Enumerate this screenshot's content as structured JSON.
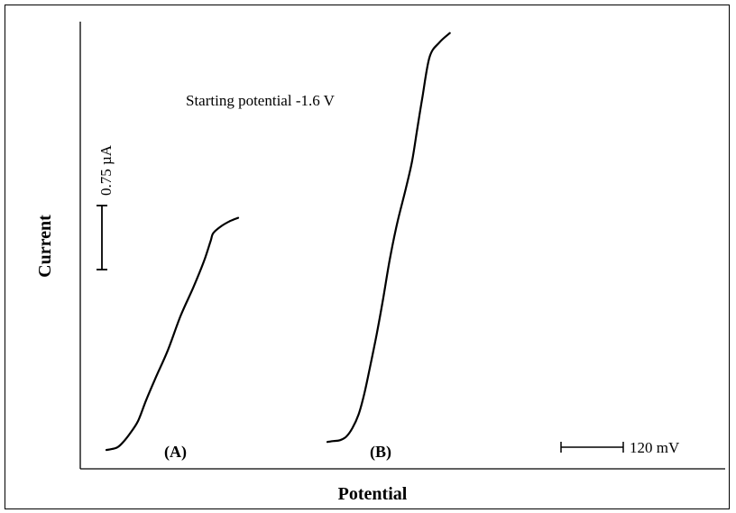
{
  "chart_data": {
    "type": "line",
    "xlabel": "Potential",
    "ylabel": "Current",
    "annotation": "Starting potential -1.6 V",
    "current_scale_bar": {
      "label": "0.75 µA",
      "value": 0.75,
      "unit": "µA"
    },
    "potential_scale_bar": {
      "label": "120 mV",
      "value": 120,
      "unit": "mV"
    },
    "grid": false,
    "legend": "none",
    "series": [
      {
        "name": "(A)",
        "color": "#000000",
        "x_mV": [
          0,
          10,
          21,
          32,
          45,
          61,
          77,
          96,
          118,
          143,
          168,
          188,
          201,
          206,
          221,
          238,
          254
        ],
        "y_uA": [
          0.01,
          0.02,
          0.04,
          0.1,
          0.2,
          0.35,
          0.6,
          0.87,
          1.17,
          1.58,
          1.92,
          2.22,
          2.46,
          2.55,
          2.63,
          2.69,
          2.73
        ]
      },
      {
        "name": "(B)",
        "color": "#000000",
        "x_mV": [
          0,
          12,
          24,
          36,
          48,
          60,
          71,
          82,
          95,
          107,
          120,
          134,
          150,
          163,
          173,
          183,
          197,
          216,
          236
        ],
        "y_uA": [
          0.03,
          0.04,
          0.05,
          0.09,
          0.19,
          0.35,
          0.59,
          0.9,
          1.29,
          1.69,
          2.16,
          2.58,
          2.97,
          3.31,
          3.69,
          4.06,
          4.54,
          4.71,
          4.82
        ]
      }
    ]
  }
}
